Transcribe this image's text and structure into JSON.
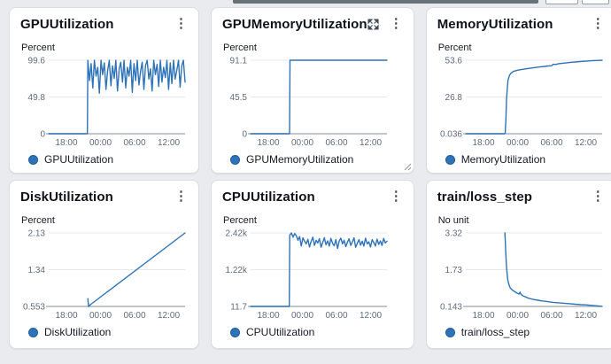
{
  "page": {
    "background": "#e9ebee"
  },
  "colors": {
    "line": "#2e73b8",
    "legend_dot": "#2e73b8",
    "legend_dot_border": "#1f5d9b",
    "grid": "#e6e9ec",
    "axis": "#9aa5ad",
    "axis_text": "#5f6b7a",
    "title_text": "#0f141a",
    "icon": "#414b5a"
  },
  "icons": {
    "kebab_glyph": "⋮"
  },
  "chart_data": [
    {
      "type": "line",
      "title": "GPUUtilization",
      "unit": "Percent",
      "legend": "GPUUtilization",
      "y_ticks": [
        "99.6",
        "49.8",
        "0"
      ],
      "x_ticks": [
        "18:00",
        "00:00",
        "06:00",
        "12:00"
      ],
      "ylim": [
        0,
        99.6
      ],
      "header_icons": [
        "kebab"
      ],
      "series": {
        "points": [
          [
            0,
            0
          ],
          [
            0.284,
            0
          ]
        ],
        "spread": {
          "x_start": 0.287,
          "x_end": 1.0,
          "y": [
            99.5,
            72,
            95,
            62,
            99.5,
            78,
            90,
            55,
            99.5,
            80,
            96,
            60,
            85,
            99.5,
            65,
            92,
            75,
            99.5,
            58,
            88,
            97,
            70,
            99.5,
            62,
            90,
            78,
            99.5,
            56,
            95,
            72,
            99.5,
            66,
            85,
            97,
            60,
            92,
            99.5,
            74,
            88,
            58,
            99.5,
            80,
            94,
            64,
            99.5,
            70,
            90,
            76,
            99.5,
            60,
            96,
            68,
            99.5,
            74,
            86,
            99.5,
            63,
            92,
            99.5,
            70
          ]
        }
      }
    },
    {
      "type": "line",
      "title": "GPUMemoryUtilization",
      "unit": "Percent",
      "legend": "GPUMemoryUtilization",
      "y_ticks": [
        "91.1",
        "45.5",
        "0"
      ],
      "x_ticks": [
        "18:00",
        "00:00",
        "06:00",
        "12:00"
      ],
      "ylim": [
        0,
        91.1
      ],
      "header_icons": [
        "expand",
        "kebab"
      ],
      "resizable": true,
      "series": {
        "points": [
          [
            0,
            0
          ],
          [
            0.286,
            0
          ],
          [
            0.289,
            91.1
          ],
          [
            1.0,
            91.1
          ]
        ]
      }
    },
    {
      "type": "line",
      "title": "MemoryUtilization",
      "unit": "Percent",
      "legend": "MemoryUtilization",
      "y_ticks": [
        "53.6",
        "26.8",
        "0.036"
      ],
      "x_ticks": [
        "18:00",
        "00:00",
        "06:00",
        "12:00"
      ],
      "ylim": [
        0.036,
        53.6
      ],
      "header_icons": [
        "kebab"
      ],
      "series": {
        "points": [
          [
            0,
            0.036
          ],
          [
            0.284,
            0.036
          ],
          [
            0.289,
            0.5
          ],
          [
            0.294,
            10
          ],
          [
            0.299,
            25
          ],
          [
            0.305,
            34
          ],
          [
            0.31,
            39
          ],
          [
            0.32,
            42.5
          ],
          [
            0.33,
            44
          ],
          [
            0.35,
            45.5
          ],
          [
            0.38,
            46.3
          ],
          [
            0.42,
            47
          ],
          [
            0.46,
            47.6
          ],
          [
            0.5,
            48.2
          ],
          [
            0.54,
            48.7
          ],
          [
            0.58,
            49.1
          ],
          [
            0.6,
            49.4
          ],
          [
            0.63,
            49.6
          ],
          [
            0.64,
            50.6
          ],
          [
            0.66,
            50.5
          ],
          [
            0.68,
            51.1
          ],
          [
            0.72,
            51.5
          ],
          [
            0.76,
            51.9
          ],
          [
            0.8,
            52.3
          ],
          [
            0.84,
            52.6
          ],
          [
            0.88,
            52.9
          ],
          [
            0.92,
            53.2
          ],
          [
            0.96,
            53.4
          ],
          [
            1.0,
            53.6
          ]
        ]
      }
    },
    {
      "type": "line",
      "title": "DiskUtilization",
      "unit": "Percent",
      "legend": "DiskUtilization",
      "y_ticks": [
        "2.13",
        "1.34",
        "0.553"
      ],
      "x_ticks": [
        "18:00",
        "00:00",
        "06:00",
        "12:00"
      ],
      "ylim": [
        0.553,
        2.13
      ],
      "header_icons": [
        "kebab"
      ],
      "series": {
        "points": [
          [
            0.287,
            0.72
          ],
          [
            0.292,
            0.553
          ],
          [
            0.31,
            0.6
          ],
          [
            1.0,
            2.13
          ]
        ]
      }
    },
    {
      "type": "line",
      "title": "CPUUtilization",
      "unit": "Percent",
      "legend": "CPUUtilization",
      "y_ticks": [
        "2.42k",
        "1.22k",
        "11.7"
      ],
      "x_ticks": [
        "18:00",
        "00:00",
        "06:00",
        "12:00"
      ],
      "ylim": [
        11.7,
        2420
      ],
      "header_icons": [
        "kebab"
      ],
      "series": {
        "points": [
          [
            0,
            11.7
          ],
          [
            0.284,
            11.7
          ]
        ],
        "spread": {
          "x_start": 0.287,
          "x_end": 1.0,
          "y": [
            2350,
            2420,
            2280,
            2400,
            2330,
            2180,
            2300,
            1990,
            2260,
            2150,
            2060,
            2210,
            1960,
            2140,
            2280,
            2010,
            2180,
            2090,
            2230,
            1950,
            2110,
            2260,
            2030,
            2160,
            1990,
            2240,
            2080,
            2000,
            2200,
            1910,
            2150,
            2250,
            2060,
            2180,
            1970,
            2110,
            2230,
            2010,
            2120,
            2260,
            1950,
            2080,
            2200,
            2020,
            2150,
            1990,
            2250,
            2060,
            2130,
            1960,
            2200,
            2100,
            1990,
            2220,
            2040,
            2160,
            2010,
            2240,
            2090,
            2150
          ]
        }
      }
    },
    {
      "type": "line",
      "title": "train/loss_step",
      "unit": "No unit",
      "legend": "train/loss_step",
      "y_ticks": [
        "3.32",
        "1.73",
        "0.143"
      ],
      "x_ticks": [
        "18:00",
        "00:00",
        "06:00",
        "12:00"
      ],
      "ylim": [
        0.143,
        3.32
      ],
      "header_icons": [
        "kebab"
      ],
      "series": {
        "points": [
          [
            0.287,
            3.32
          ],
          [
            0.293,
            2.5
          ],
          [
            0.298,
            1.9
          ],
          [
            0.303,
            1.55
          ],
          [
            0.308,
            1.3
          ],
          [
            0.315,
            1.12
          ],
          [
            0.325,
            0.95
          ],
          [
            0.34,
            0.86
          ],
          [
            0.36,
            0.78
          ],
          [
            0.375,
            0.72
          ],
          [
            0.39,
            0.68
          ],
          [
            0.398,
            0.76
          ],
          [
            0.405,
            0.66
          ],
          [
            0.42,
            0.6
          ],
          [
            0.44,
            0.55
          ],
          [
            0.46,
            0.5
          ],
          [
            0.48,
            0.47
          ],
          [
            0.5,
            0.44
          ],
          [
            0.53,
            0.41
          ],
          [
            0.56,
            0.38
          ],
          [
            0.6,
            0.35
          ],
          [
            0.64,
            0.32
          ],
          [
            0.68,
            0.3
          ],
          [
            0.72,
            0.28
          ],
          [
            0.76,
            0.26
          ],
          [
            0.8,
            0.24
          ],
          [
            0.84,
            0.22
          ],
          [
            0.88,
            0.21
          ],
          [
            0.92,
            0.19
          ],
          [
            0.96,
            0.17
          ],
          [
            1.0,
            0.148
          ]
        ]
      }
    }
  ]
}
